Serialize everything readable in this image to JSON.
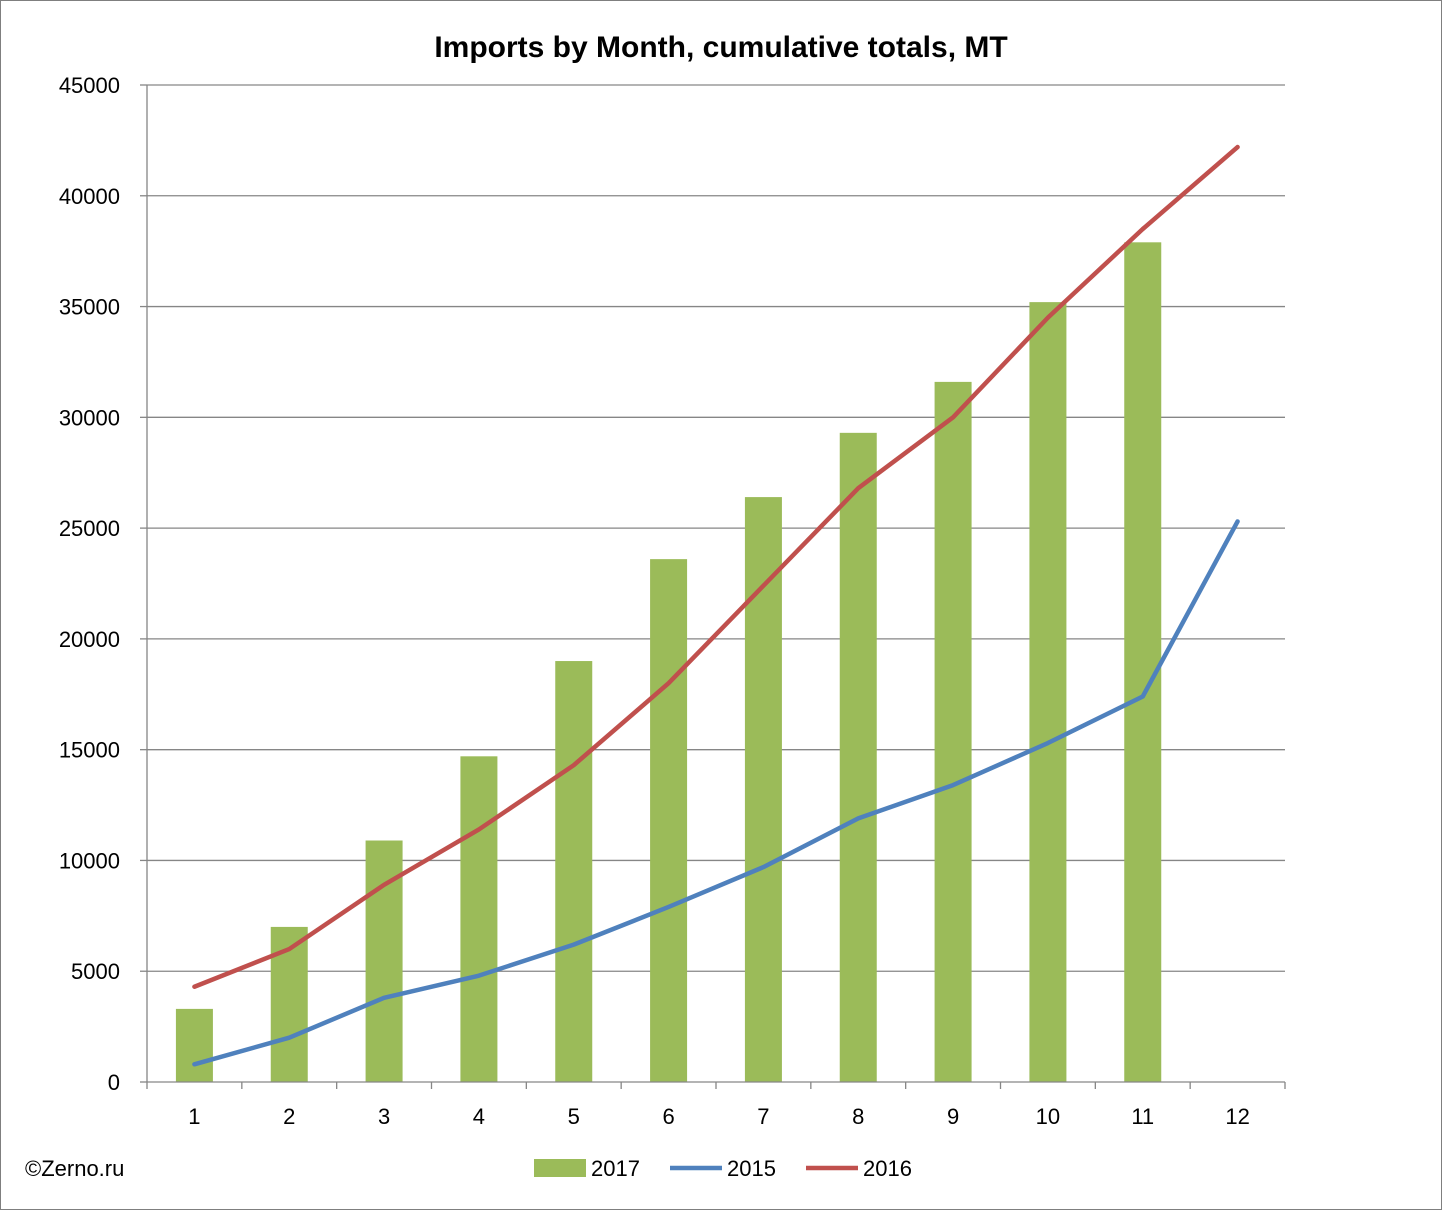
{
  "chart_data": {
    "type": "bar",
    "title": "Imports by Month, cumulative totals, MT",
    "xlabel": "",
    "ylabel": "",
    "categories": [
      "1",
      "2",
      "3",
      "4",
      "5",
      "6",
      "7",
      "8",
      "9",
      "10",
      "11",
      "12"
    ],
    "ylim": [
      0,
      45000
    ],
    "yticks": [
      "0",
      "5000",
      "10000",
      "15000",
      "20000",
      "25000",
      "30000",
      "35000",
      "40000",
      "45000"
    ],
    "grid": true,
    "legend_position": "bottom",
    "series": [
      {
        "name": "2017",
        "type": "bar",
        "color": "#9BBB59",
        "values": [
          3300,
          7000,
          10900,
          14700,
          19000,
          23600,
          26400,
          29300,
          31600,
          35200,
          37900,
          null
        ]
      },
      {
        "name": "2015",
        "type": "line",
        "color": "#4F81BD",
        "values": [
          800,
          2000,
          3800,
          4800,
          6200,
          7900,
          9700,
          11900,
          13400,
          15300,
          17400,
          25300
        ]
      },
      {
        "name": "2016",
        "type": "line",
        "color": "#C0504D",
        "values": [
          4300,
          6000,
          8900,
          11400,
          14300,
          18000,
          22400,
          26800,
          30000,
          34500,
          38500,
          42200
        ]
      }
    ]
  },
  "credit": "©Zerno.ru"
}
